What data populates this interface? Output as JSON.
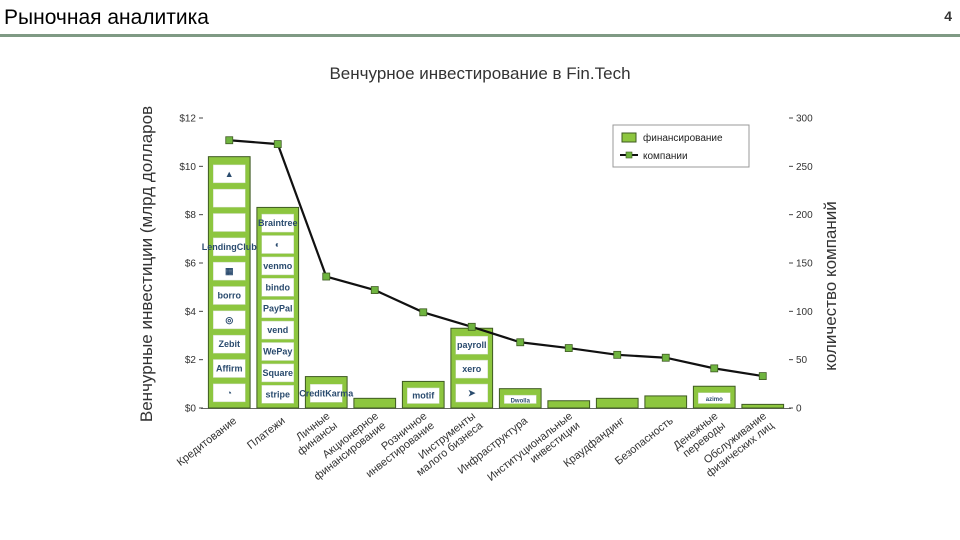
{
  "header": {
    "title": "Рыночная аналитика",
    "page_number": "4"
  },
  "colors": {
    "bar_fill": "#8dc63f",
    "bar_stroke": "#3e5a22",
    "line": "#111111",
    "marker": "#6fb43f",
    "rule": "#7f9a84"
  },
  "chart_data": {
    "type": "bar",
    "title": "Венчурное инвестирование в Fin.Tech",
    "ylabel": "Венчурные инвестиции (млрд долларов",
    "y2label": "количество компаний",
    "ylim": [
      0,
      12
    ],
    "y2lim": [
      0,
      300
    ],
    "yticks": [
      "$0",
      "$2",
      "$4",
      "$6",
      "$8",
      "$10",
      "$12"
    ],
    "y2ticks": [
      "0",
      "50",
      "100",
      "150",
      "200",
      "250",
      "300"
    ],
    "categories": [
      "Кредитование",
      "Платежи",
      "Личные финансы",
      "Акционерное финансирование",
      "Розничное инвестирование",
      "Инструменты малого бизнеса",
      "Инфраструктура",
      "Институциональные инвестиции",
      "Краудфандинг",
      "Безопасность",
      "Денежные переводы",
      "Обслуживание физических лиц"
    ],
    "series": [
      {
        "name": "финансирование",
        "kind": "bar",
        "values": [
          10.4,
          8.3,
          1.3,
          0.4,
          1.1,
          3.3,
          0.8,
          0.3,
          0.4,
          0.5,
          0.9,
          0.15
        ]
      },
      {
        "name": "компании",
        "kind": "line",
        "axis": "right",
        "values": [
          277,
          273,
          136,
          122,
          99,
          84,
          68,
          62,
          55,
          52,
          41,
          33
        ]
      }
    ],
    "logos": [
      [
        "▲",
        "",
        "",
        "LendingClub",
        "▦",
        "borro",
        "◎",
        "Zebit",
        "Affirm",
        "◔"
      ],
      [
        "Braintree",
        "◐",
        "venmo",
        "bindo",
        "PayPal",
        "vend",
        "WePay",
        "Square",
        "stripe"
      ],
      [
        "CreditKarma"
      ],
      [],
      [
        "motif"
      ],
      [
        "payroll",
        "xero",
        "➤"
      ],
      [
        "Dwolla"
      ],
      [],
      [],
      [],
      [
        "azimo"
      ],
      []
    ],
    "legend_position": "top-right",
    "grid": false
  }
}
